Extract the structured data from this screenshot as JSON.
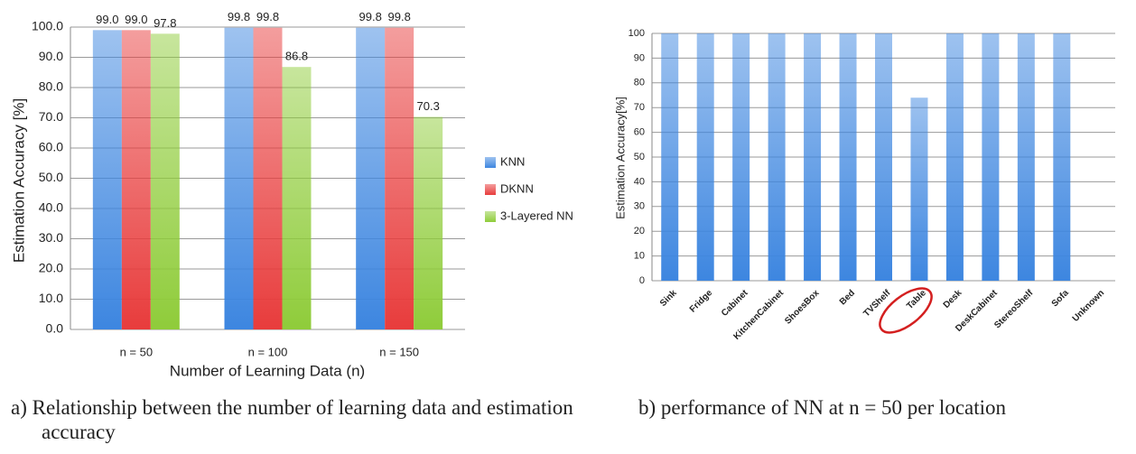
{
  "chart_data": [
    {
      "type": "bar",
      "caption": "a)  Relationship between the number of learning data and estimation accuracy",
      "x_label": "Number of Learning Data (n)",
      "y_label": "Estimation Accuracy [%]",
      "categories": [
        "n = 50",
        "n = 100",
        "n = 150"
      ],
      "series": [
        {
          "name": "KNN",
          "color": "#3d86e0",
          "values": [
            99.0,
            99.8,
            99.8
          ],
          "value_labels": [
            "99.0",
            "99.8",
            "99.8"
          ]
        },
        {
          "name": "DKNN",
          "color": "#e83c3c",
          "values": [
            99.0,
            99.8,
            99.8
          ],
          "value_labels": [
            "99.0",
            "99.8",
            "99.8"
          ]
        },
        {
          "name": "3-Layered NN",
          "color": "#8fcc3a",
          "values": [
            97.8,
            86.8,
            70.3
          ],
          "value_labels": [
            "97.8",
            "86.8",
            "70.3"
          ]
        }
      ],
      "ylim": [
        0,
        100
      ],
      "yticks": [
        {
          "value": 0,
          "label": "0.0"
        },
        {
          "value": 10,
          "label": "10.0"
        },
        {
          "value": 20,
          "label": "20.0"
        },
        {
          "value": 30,
          "label": "30.0"
        },
        {
          "value": 40,
          "label": "40.0"
        },
        {
          "value": 50,
          "label": "50.0"
        },
        {
          "value": 60,
          "label": "60.0"
        },
        {
          "value": 70,
          "label": "70.0"
        },
        {
          "value": 80,
          "label": "80.0"
        },
        {
          "value": 90,
          "label": "90.0"
        },
        {
          "value": 100,
          "label": "100.0"
        }
      ],
      "grid": true,
      "legend": "right"
    },
    {
      "type": "bar",
      "caption": "b) performance of NN at n = 50 per location",
      "y_label": "Estimation Accuracy[%]",
      "categories": [
        "Sink",
        "Fridge",
        "Cabinet",
        "KitchenCabinet",
        "ShoesBox",
        "Bed",
        "TVShelf",
        "Table",
        "Desk",
        "DeskCabinet",
        "StereoShelf",
        "Sofa",
        "Unknown"
      ],
      "values": [
        100,
        100,
        100,
        100,
        100,
        100,
        100,
        74,
        100,
        100,
        100,
        100,
        0
      ],
      "color": "#3d86e0",
      "ylim": [
        0,
        100
      ],
      "yticks": [
        0,
        10,
        20,
        30,
        40,
        50,
        60,
        70,
        80,
        90,
        100
      ],
      "grid": true
    }
  ]
}
